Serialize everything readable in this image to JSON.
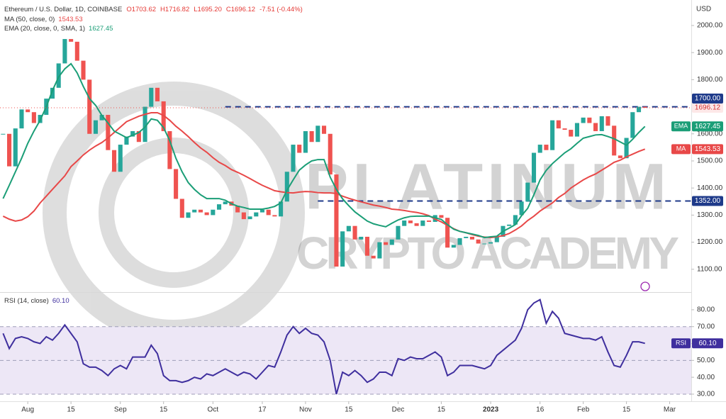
{
  "chart_data": [
    {
      "type": "candlestick",
      "title": "Ethereum / U.S. Dollar, 1D, COINBASE",
      "quote": [
        "O1703.62",
        "H1716.82",
        "L1695.20",
        "C1696.12",
        "-7.51 (-0.44%)"
      ],
      "currency": "USD",
      "watermark": [
        "PLATINUM",
        "CRYPTO ACADEMY"
      ],
      "ylim": [
        1021,
        2081
      ],
      "yticks": [
        {
          "value": 1100,
          "label": "1100.00"
        },
        {
          "value": 1200,
          "label": "1200.00"
        },
        {
          "value": 1300,
          "label": "1300.00"
        },
        {
          "value": 1400,
          "label": "1400.00"
        },
        {
          "value": 1500,
          "label": "1500.00"
        },
        {
          "value": 1600,
          "label": "1600.00"
        },
        {
          "value": 1800,
          "label": "1800.00"
        },
        {
          "value": 1900,
          "label": "1900.00"
        },
        {
          "value": 2000,
          "label": "2000.00"
        }
      ],
      "levels": [
        {
          "value": 1700,
          "label": "1700.00",
          "color": "#1e3a8a"
        },
        {
          "value": 1352,
          "label": "1352.00",
          "color": "#1e3a8a"
        }
      ],
      "series": [
        {
          "type": "candlestick",
          "up_color": "#26a69a",
          "down_color": "#ef5350",
          "last_label": "1696.12",
          "values": [
            1600,
            1480,
            1620,
            1690,
            1680,
            1640,
            1670,
            1730,
            1770,
            1860,
            1950,
            1940,
            1870,
            1800,
            1600,
            1650,
            1670,
            1540,
            1460,
            1560,
            1590,
            1610,
            1570,
            1700,
            1770,
            1720,
            1610,
            1470,
            1360,
            1290,
            1310,
            1320,
            1310,
            1300,
            1320,
            1340,
            1350,
            1335,
            1310,
            1285,
            1295,
            1310,
            1320,
            1300,
            1295,
            1350,
            1460,
            1560,
            1530,
            1610,
            1570,
            1630,
            1600,
            1450,
            1110,
            1240,
            1260,
            1210,
            1220,
            1150,
            1140,
            1200,
            1190,
            1210,
            1260,
            1280,
            1270,
            1260,
            1280,
            1275,
            1300,
            1290,
            1180,
            1190,
            1215,
            1220,
            1210,
            1195,
            1195,
            1200,
            1220,
            1260,
            1265,
            1300,
            1350,
            1420,
            1530,
            1560,
            1540,
            1650,
            1620,
            1615,
            1590,
            1640,
            1660,
            1640,
            1610,
            1665,
            1630,
            1520,
            1510,
            1585,
            1680,
            1700,
            1696.12,
            null,
            null,
            null,
            null,
            null,
            null,
            null
          ]
        },
        {
          "type": "line",
          "name": "MA",
          "legend": "MA (50, close, 0)",
          "last_label": "1543.53",
          "color": "#e84848",
          "values": [
            1296,
            1285,
            1278,
            1282,
            1294,
            1315,
            1345,
            1370,
            1395,
            1420,
            1445,
            1479,
            1500,
            1522,
            1540,
            1555,
            1568,
            1585,
            1605,
            1625,
            1645,
            1655,
            1665,
            1672,
            1678,
            1678,
            1668,
            1650,
            1628,
            1610,
            1590,
            1568,
            1548,
            1532,
            1512,
            1495,
            1483,
            1468,
            1458,
            1447,
            1435,
            1422,
            1410,
            1400,
            1390,
            1386,
            1383,
            1382,
            1385,
            1387,
            1386,
            1383,
            1382,
            1382,
            1380,
            1370,
            1362,
            1355,
            1349,
            1343,
            1337,
            1333,
            1328,
            1322,
            1320,
            1317,
            1313,
            1310,
            1305,
            1298,
            1285,
            1275,
            1262,
            1250,
            1240,
            1235,
            1228,
            1222,
            1219,
            1217,
            1220,
            1224,
            1232,
            1245,
            1260,
            1280,
            1296,
            1315,
            1330,
            1345,
            1365,
            1380,
            1400,
            1415,
            1430,
            1442,
            1452,
            1466,
            1480,
            1495,
            1503,
            1515,
            1525,
            1535,
            1543.53,
            null,
            null,
            null,
            null,
            null,
            null,
            null
          ]
        },
        {
          "type": "line",
          "name": "EMA",
          "legend": "EMA (20, close, 0, SMA, 1)",
          "last_label": "1627.45",
          "color": "#1b9e77",
          "values": [
            1361,
            1410,
            1460,
            1510,
            1565,
            1610,
            1650,
            1700,
            1760,
            1810,
            1840,
            1859,
            1825,
            1775,
            1730,
            1705,
            1668,
            1640,
            1610,
            1598,
            1586,
            1595,
            1605,
            1625,
            1655,
            1650,
            1623,
            1575,
            1510,
            1460,
            1420,
            1395,
            1375,
            1361,
            1361,
            1361,
            1355,
            1342,
            1333,
            1328,
            1322,
            1322,
            1322,
            1326,
            1332,
            1345,
            1392,
            1430,
            1466,
            1485,
            1500,
            1505,
            1505,
            1440,
            1395,
            1360,
            1335,
            1312,
            1295,
            1278,
            1268,
            1262,
            1257,
            1270,
            1282,
            1290,
            1295,
            1296,
            1296,
            1296,
            1290,
            1284,
            1265,
            1248,
            1240,
            1235,
            1230,
            1225,
            1217,
            1220,
            1222,
            1240,
            1252,
            1265,
            1298,
            1325,
            1375,
            1430,
            1465,
            1490,
            1510,
            1530,
            1545,
            1565,
            1584,
            1590,
            1596,
            1597,
            1590,
            1582,
            1570,
            1558,
            1580,
            1605,
            1627.45,
            null,
            null,
            null,
            null,
            null,
            null,
            null
          ]
        }
      ]
    },
    {
      "type": "line",
      "ylim": [
        26.2,
        89.2
      ],
      "yticks": [
        {
          "value": 30,
          "label": "30.00"
        },
        {
          "value": 40,
          "label": "40.00"
        },
        {
          "value": 50,
          "label": "50.00"
        },
        {
          "value": 60,
          "label": "60.00"
        },
        {
          "value": 70,
          "label": "70.00"
        },
        {
          "value": 80,
          "label": "80.00"
        }
      ],
      "band": [
        30,
        70
      ],
      "band_color": "#ede7f6",
      "reference_lines": [
        30,
        50,
        70
      ],
      "categories": [
        null,
        null,
        null,
        null,
        "Aug",
        null,
        null,
        null,
        null,
        null,
        null,
        "15",
        null,
        null,
        null,
        null,
        null,
        null,
        null,
        "Sep",
        null,
        null,
        null,
        null,
        null,
        null,
        "15",
        null,
        null,
        null,
        null,
        null,
        null,
        null,
        "Oct",
        null,
        null,
        null,
        null,
        null,
        null,
        null,
        "17",
        null,
        null,
        null,
        null,
        null,
        null,
        "Nov",
        null,
        null,
        null,
        null,
        null,
        null,
        "15",
        null,
        null,
        null,
        null,
        null,
        null,
        null,
        "Dec",
        null,
        null,
        null,
        null,
        null,
        null,
        "15",
        null,
        null,
        null,
        null,
        null,
        null,
        null,
        "2023",
        null,
        null,
        null,
        null,
        null,
        null,
        null,
        "16",
        null,
        null,
        null,
        null,
        null,
        null,
        "Feb",
        null,
        null,
        null,
        null,
        null,
        null,
        "15",
        null,
        null,
        null,
        null,
        null,
        null,
        "Mar",
        null,
        null,
        null
      ],
      "series": [
        {
          "type": "line",
          "name": "RSI",
          "legend": "RSI (14, close)",
          "last_label": "60.10",
          "color": "#3f2f9e",
          "values": [
            66,
            57,
            63,
            64,
            63,
            61,
            60,
            64,
            62,
            66,
            71,
            66,
            61,
            48,
            46,
            46,
            44,
            41,
            45,
            47,
            45,
            52,
            52,
            52,
            59,
            54,
            41,
            38,
            38,
            37,
            38,
            40,
            39,
            42,
            41,
            43,
            45,
            43,
            41,
            43,
            42,
            39,
            43,
            47,
            46,
            55,
            65,
            70,
            66,
            69,
            66,
            65,
            61,
            50,
            30,
            43,
            41,
            44,
            41,
            37,
            39,
            43,
            43,
            41,
            51,
            50,
            52,
            51,
            51,
            53,
            55,
            52,
            41,
            43,
            47,
            47,
            47,
            46,
            45,
            47,
            53,
            56,
            59,
            62,
            69,
            80,
            84,
            86,
            72,
            79,
            75,
            66,
            65,
            64,
            63,
            63,
            62,
            64,
            55,
            47,
            46,
            53,
            61,
            61,
            60.1,
            null,
            null,
            null,
            null,
            null,
            null,
            null
          ]
        }
      ]
    }
  ]
}
